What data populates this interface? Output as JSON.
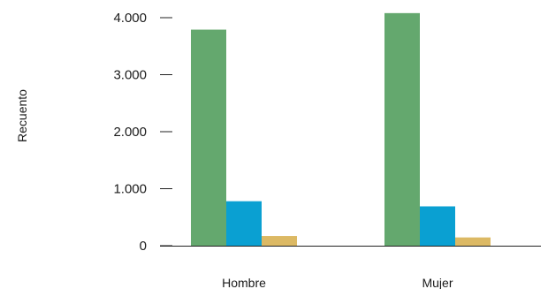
{
  "chart_data": {
    "type": "bar",
    "ylabel": "Recuento",
    "categories": [
      "Hombre",
      "Mujer"
    ],
    "y_ticks": [
      {
        "value": 0,
        "label": "0"
      },
      {
        "value": 1000,
        "label": "1.000"
      },
      {
        "value": 2000,
        "label": "2.000"
      },
      {
        "value": 3000,
        "label": "3.000"
      },
      {
        "value": 4000,
        "label": "4.000"
      }
    ],
    "ylim": [
      0,
      4000
    ],
    "grid": false,
    "legend": "none",
    "series": [
      {
        "values": [
          3790,
          4080
        ],
        "color": "#64a86e"
      },
      {
        "values": [
          780,
          690
        ],
        "color": "#0aa0d2"
      },
      {
        "values": [
          170,
          145
        ],
        "color": "#dcb964"
      }
    ]
  }
}
